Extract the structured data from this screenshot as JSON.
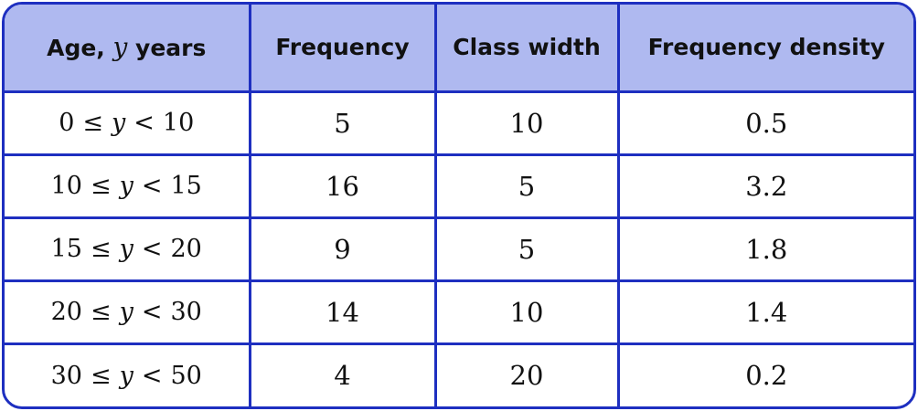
{
  "table": {
    "headers": {
      "age_prefix": "Age, ",
      "age_variable": "y",
      "age_suffix": " years",
      "frequency": "Frequency",
      "class_width": "Class width",
      "frequency_density": "Frequency density"
    },
    "rows": [
      {
        "lower": "0",
        "le": "≤",
        "var": "y",
        "lt": "<",
        "upper": "10",
        "frequency": "5",
        "class_width": "10",
        "frequency_density": "0.5"
      },
      {
        "lower": "10",
        "le": "≤",
        "var": "y",
        "lt": "<",
        "upper": "15",
        "frequency": "16",
        "class_width": "5",
        "frequency_density": "3.2"
      },
      {
        "lower": "15",
        "le": "≤",
        "var": "y",
        "lt": "<",
        "upper": "20",
        "frequency": "9",
        "class_width": "5",
        "frequency_density": "1.8"
      },
      {
        "lower": "20",
        "le": "≤",
        "var": "y",
        "lt": "<",
        "upper": "30",
        "frequency": "14",
        "class_width": "10",
        "frequency_density": "1.4"
      },
      {
        "lower": "30",
        "le": "≤",
        "var": "y",
        "lt": "<",
        "upper": "50",
        "frequency": "4",
        "class_width": "20",
        "frequency_density": "0.2"
      }
    ],
    "colors": {
      "border": "#1e2fc0",
      "header_background": "#afb9f0",
      "text": "#111111"
    }
  }
}
